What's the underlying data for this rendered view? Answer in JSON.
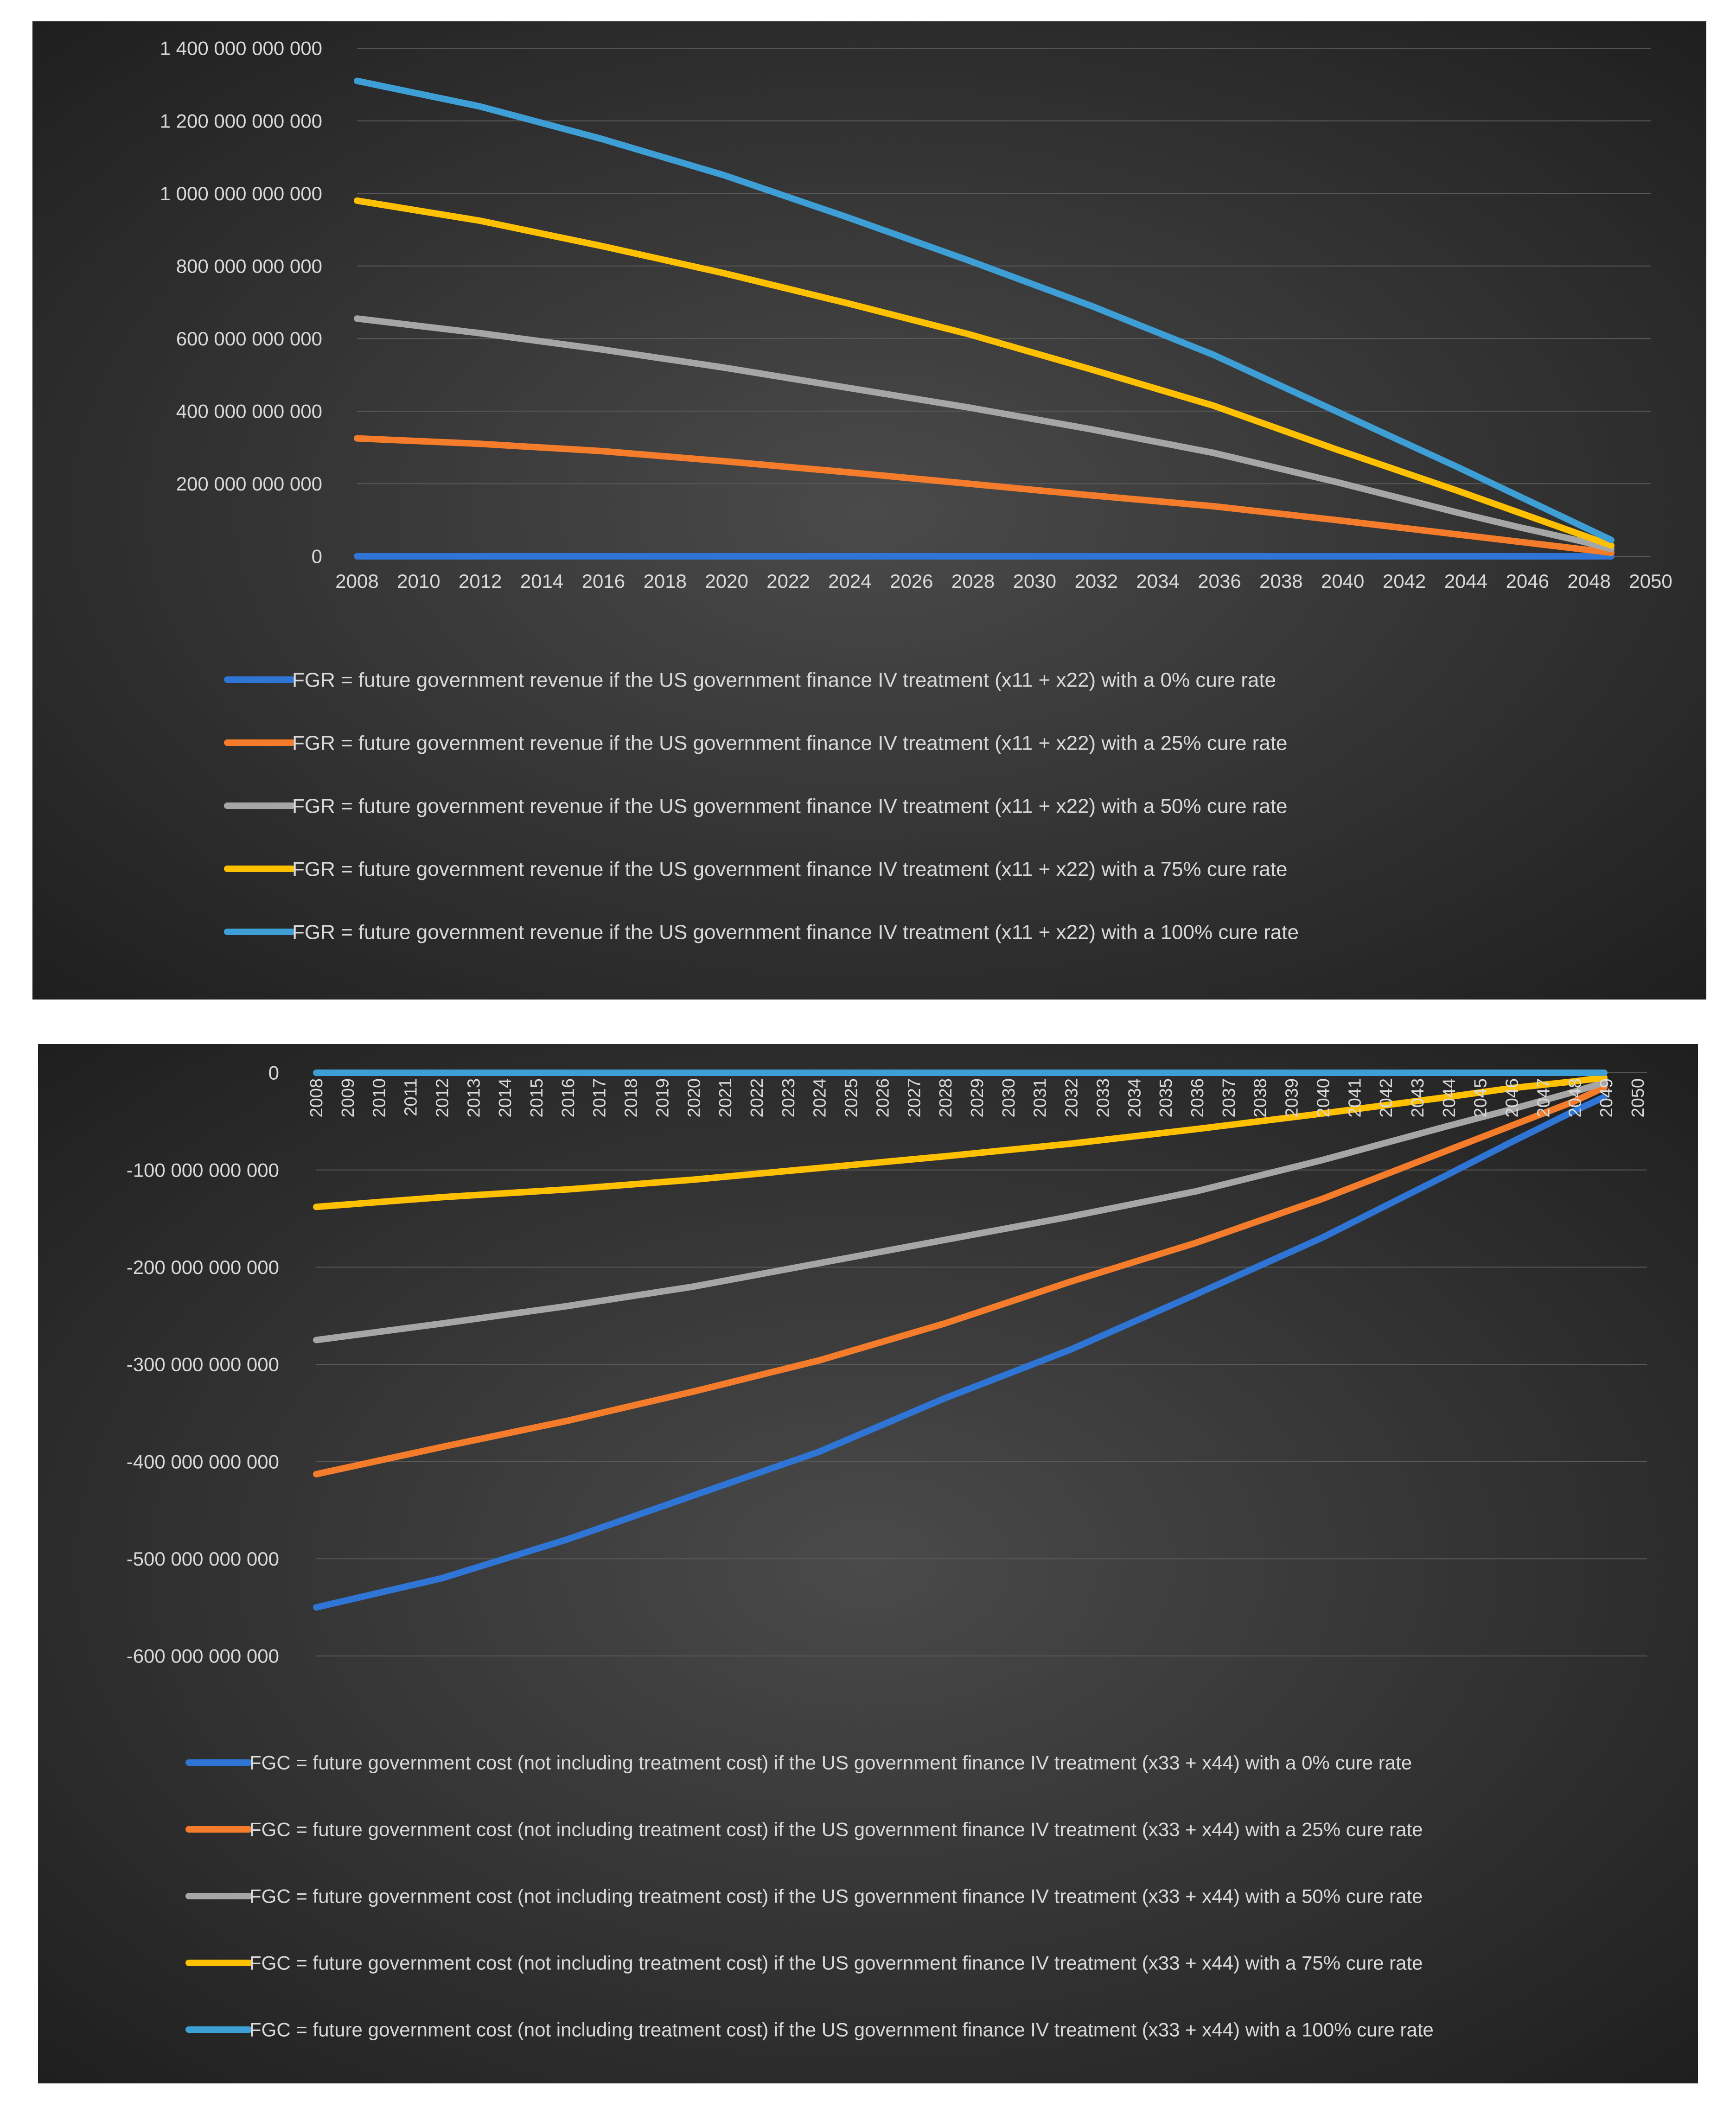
{
  "chart_data": [
    {
      "type": "line",
      "title": "",
      "xlabel": "",
      "ylabel": "",
      "x_ticks": [
        "2008",
        "2010",
        "2012",
        "2014",
        "2016",
        "2018",
        "2020",
        "2022",
        "2024",
        "2026",
        "2028",
        "2030",
        "2032",
        "2034",
        "2036",
        "2038",
        "2040",
        "2042",
        "2044",
        "2046",
        "2048",
        "2050"
      ],
      "x_range": [
        2008,
        2050
      ],
      "ylim": [
        0,
        1400000000000
      ],
      "y_ticks": [
        {
          "value": 0,
          "label": "0"
        },
        {
          "value": 200000000000,
          "label": "200 000 000 000"
        },
        {
          "value": 400000000000,
          "label": "400 000 000 000"
        },
        {
          "value": 600000000000,
          "label": "600 000 000 000"
        },
        {
          "value": 800000000000,
          "label": "800 000 000 000"
        },
        {
          "value": 1000000000000,
          "label": "1 000 000 000 000"
        },
        {
          "value": 1200000000000,
          "label": "1 200 000 000 000"
        },
        {
          "value": 1400000000000,
          "label": "1 400 000 000 000"
        }
      ],
      "grid": true,
      "legend_position": "bottom",
      "series": [
        {
          "name": "FGR = future government revenue if the US government finance IV treatment (x11 + x22) with a 0% cure rate",
          "color": "#2e75d6",
          "x": [
            2008,
            2049
          ],
          "y": [
            0,
            0
          ]
        },
        {
          "name": "FGR = future government revenue if the US government finance IV treatment (x11 + x22) with a 25% cure rate",
          "color": "#f57c2a",
          "x": [
            2008,
            2012,
            2016,
            2020,
            2024,
            2028,
            2032,
            2036,
            2040,
            2044,
            2046,
            2048,
            2049
          ],
          "y": [
            325000000000,
            310000000000,
            290000000000,
            262000000000,
            232000000000,
            200000000000,
            168000000000,
            138000000000,
            100000000000,
            60000000000,
            40000000000,
            20000000000,
            10000000000
          ]
        },
        {
          "name": "FGR = future government revenue if the US government finance IV treatment (x11 + x22) with a 50% cure rate",
          "color": "#a6a6a6",
          "x": [
            2008,
            2012,
            2016,
            2020,
            2024,
            2028,
            2032,
            2036,
            2040,
            2044,
            2046,
            2048,
            2049
          ],
          "y": [
            655000000000,
            615000000000,
            570000000000,
            520000000000,
            465000000000,
            410000000000,
            350000000000,
            285000000000,
            205000000000,
            120000000000,
            80000000000,
            42000000000,
            20000000000
          ]
        },
        {
          "name": "FGR = future government revenue if the US government finance IV treatment (x11 + x22) with a 75% cure rate",
          "color": "#ffc000",
          "x": [
            2008,
            2012,
            2016,
            2020,
            2024,
            2028,
            2032,
            2036,
            2040,
            2044,
            2046,
            2048,
            2049
          ],
          "y": [
            980000000000,
            925000000000,
            855000000000,
            780000000000,
            698000000000,
            612000000000,
            515000000000,
            415000000000,
            295000000000,
            180000000000,
            120000000000,
            60000000000,
            30000000000
          ]
        },
        {
          "name": "FGR = future government revenue if the US government finance IV treatment (x11 + x22) with a 100% cure rate",
          "color": "#3d9fd6",
          "x": [
            2008,
            2012,
            2016,
            2020,
            2024,
            2028,
            2032,
            2036,
            2040,
            2044,
            2046,
            2048,
            2049
          ],
          "y": [
            1310000000000,
            1240000000000,
            1150000000000,
            1050000000000,
            935000000000,
            815000000000,
            690000000000,
            555000000000,
            400000000000,
            245000000000,
            165000000000,
            85000000000,
            45000000000
          ]
        }
      ]
    },
    {
      "type": "line",
      "title": "",
      "xlabel": "",
      "ylabel": "",
      "x_ticks": [
        "2008",
        "2009",
        "2010",
        "2011",
        "2012",
        "2013",
        "2014",
        "2015",
        "2016",
        "2017",
        "2018",
        "2019",
        "2020",
        "2021",
        "2022",
        "2023",
        "2024",
        "2025",
        "2026",
        "2027",
        "2028",
        "2029",
        "2030",
        "2031",
        "2032",
        "2033",
        "2034",
        "2035",
        "2036",
        "2037",
        "2038",
        "2039",
        "2040",
        "2041",
        "2042",
        "2043",
        "2044",
        "2045",
        "2046",
        "2047",
        "2048",
        "2049",
        "2050"
      ],
      "x_range": [
        2008,
        2050
      ],
      "ylim": [
        -600000000000,
        0
      ],
      "y_ticks": [
        {
          "value": 0,
          "label": "0"
        },
        {
          "value": -100000000000,
          "label": "-100 000 000 000"
        },
        {
          "value": -200000000000,
          "label": "-200 000 000 000"
        },
        {
          "value": -300000000000,
          "label": "-300 000 000 000"
        },
        {
          "value": -400000000000,
          "label": "-400 000 000 000"
        },
        {
          "value": -500000000000,
          "label": "-500 000 000 000"
        },
        {
          "value": -600000000000,
          "label": "-600 000 000 000"
        }
      ],
      "grid": true,
      "legend_position": "bottom",
      "series": [
        {
          "name": "FGC = future government cost (not including treatment cost) if the US government finance IV treatment (x33 + x44) with a 0% cure rate",
          "color": "#2e75d6",
          "x": [
            2008,
            2012,
            2016,
            2020,
            2024,
            2028,
            2032,
            2036,
            2040,
            2044,
            2046,
            2048,
            2049
          ],
          "y": [
            -550000000000,
            -520000000000,
            -480000000000,
            -435000000000,
            -390000000000,
            -335000000000,
            -285000000000,
            -228000000000,
            -170000000000,
            -105000000000,
            -72000000000,
            -40000000000,
            -25000000000
          ]
        },
        {
          "name": "FGC = future government cost (not including treatment cost) if the US government finance IV treatment (x33 + x44) with a 25% cure rate",
          "color": "#f57c2a",
          "x": [
            2008,
            2012,
            2016,
            2020,
            2024,
            2028,
            2032,
            2036,
            2040,
            2044,
            2046,
            2048,
            2049
          ],
          "y": [
            -413000000000,
            -385000000000,
            -358000000000,
            -328000000000,
            -296000000000,
            -258000000000,
            -215000000000,
            -175000000000,
            -130000000000,
            -80000000000,
            -55000000000,
            -30000000000,
            -15000000000
          ]
        },
        {
          "name": "FGC = future government cost (not including treatment cost) if the US government finance IV treatment (x33 + x44) with a 50% cure rate",
          "color": "#a6a6a6",
          "x": [
            2008,
            2012,
            2016,
            2020,
            2024,
            2028,
            2032,
            2036,
            2040,
            2044,
            2046,
            2048,
            2049
          ],
          "y": [
            -275000000000,
            -258000000000,
            -240000000000,
            -220000000000,
            -196000000000,
            -172000000000,
            -148000000000,
            -122000000000,
            -90000000000,
            -55000000000,
            -38000000000,
            -20000000000,
            -10000000000
          ]
        },
        {
          "name": "FGC = future government cost (not including treatment cost) if the US government finance IV treatment (x33 + x44) with a 75% cure rate",
          "color": "#ffc000",
          "x": [
            2008,
            2012,
            2016,
            2020,
            2024,
            2028,
            2032,
            2036,
            2040,
            2044,
            2046,
            2048,
            2049
          ],
          "y": [
            -138000000000,
            -128000000000,
            -120000000000,
            -110000000000,
            -98000000000,
            -86000000000,
            -73000000000,
            -58000000000,
            -42000000000,
            -25000000000,
            -16000000000,
            -9000000000,
            -5000000000
          ]
        },
        {
          "name": "FGC = future government cost (not including treatment cost) if the US government finance IV treatment (x33 + x44) with a 100% cure rate",
          "color": "#3d9fd6",
          "x": [
            2008,
            2049
          ],
          "y": [
            0,
            0
          ]
        }
      ]
    }
  ]
}
